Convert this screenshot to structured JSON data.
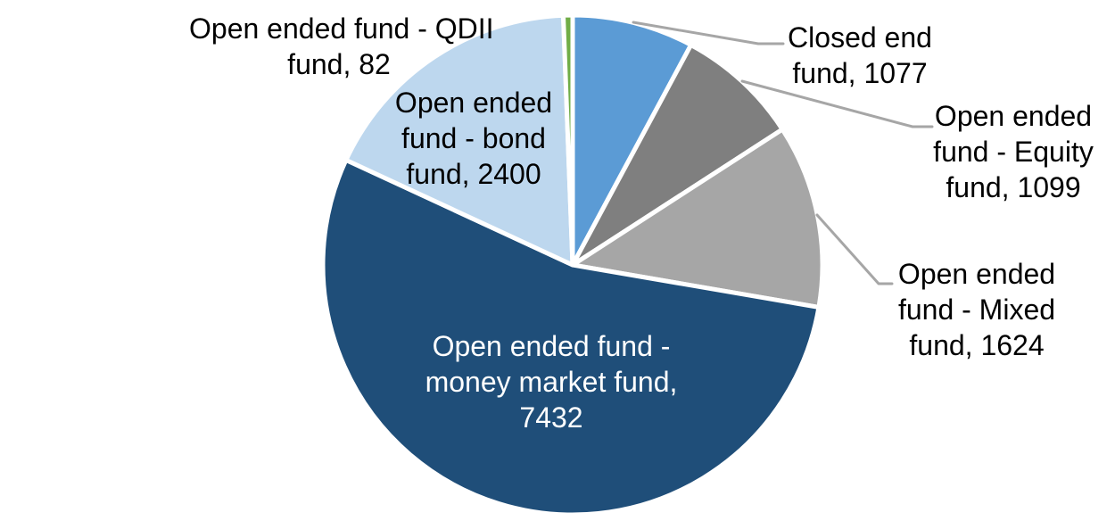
{
  "chart_data": {
    "type": "pie",
    "total": 13714,
    "start_angle_deg": 0,
    "direction": "clockwise",
    "background": "#FFFFFF",
    "slice_border_color": "#FFFFFF",
    "leader_line_color": "#A6A6A6",
    "slices": [
      {
        "name": "Closed end fund",
        "value": 1077,
        "color": "#5B9BD5",
        "label": "Closed end fund, 1077",
        "label_lines": [
          "Closed end",
          "fund, 1077"
        ],
        "label_placement": "outside-top-right",
        "label_color": "#000000"
      },
      {
        "name": "Open ended fund - Equity fund",
        "value": 1099,
        "color": "#7F7F7F",
        "label": "Open ended fund - Equity fund, 1099",
        "label_lines": [
          "Open ended",
          "fund - Equity",
          "fund, 1099"
        ],
        "label_placement": "outside-right",
        "label_color": "#000000"
      },
      {
        "name": "Open ended fund - Mixed fund",
        "value": 1624,
        "color": "#A6A6A6",
        "label": "Open ended fund - Mixed fund, 1624",
        "label_lines": [
          "Open ended",
          "fund - Mixed",
          "fund, 1624"
        ],
        "label_placement": "outside-right",
        "label_color": "#000000"
      },
      {
        "name": "Open ended fund - money market fund",
        "value": 7432,
        "color": "#1F4E79",
        "label": "Open ended fund - money market fund, 7432",
        "label_lines": [
          "Open ended fund -",
          "money market fund,",
          "7432"
        ],
        "label_placement": "inside",
        "label_color": "#FFFFFF"
      },
      {
        "name": "Open ended fund - bond fund",
        "value": 2400,
        "color": "#BDD7EE",
        "label": "Open ended fund - bond fund, 2400",
        "label_lines": [
          "Open ended",
          "fund - bond",
          "fund, 2400"
        ],
        "label_placement": "on-slice",
        "label_color": "#000000"
      },
      {
        "name": "Open ended fund - QDII fund",
        "value": 82,
        "color": "#70AD47",
        "label": "Open ended fund - QDII fund, 82",
        "label_lines": [
          "Open ended fund - QDII",
          "fund, 82"
        ],
        "label_placement": "outside-top-left",
        "label_color": "#000000"
      }
    ]
  }
}
